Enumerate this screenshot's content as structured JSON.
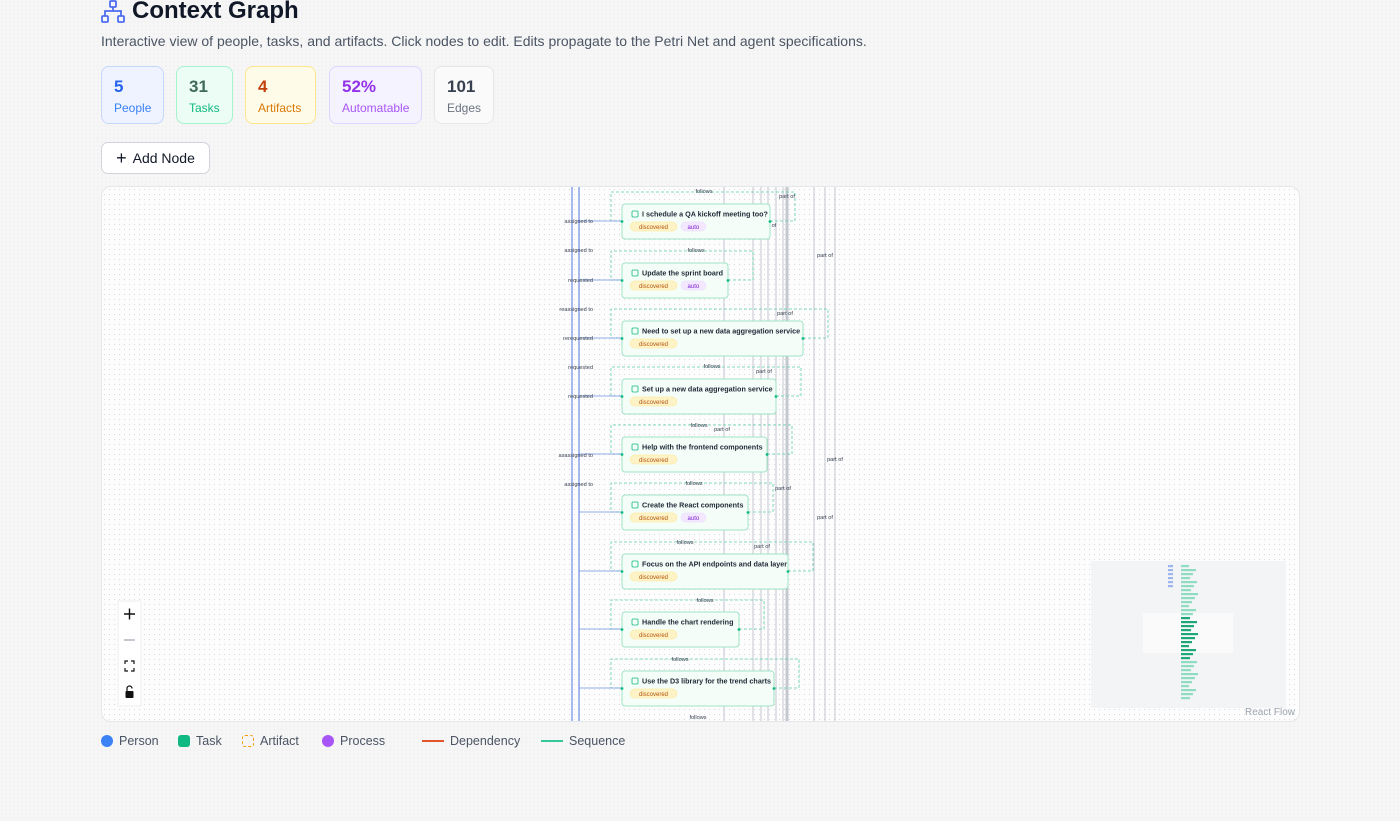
{
  "header": {
    "title": "Context Graph",
    "subtitle": "Interactive view of people, tasks, and artifacts. Click nodes to edit. Edits propagate to the Petri Net and agent specifications."
  },
  "stats": [
    {
      "value": "5",
      "label": "People"
    },
    {
      "value": "31",
      "label": "Tasks"
    },
    {
      "value": "4",
      "label": "Artifacts"
    },
    {
      "value": "52%",
      "label": "Automatable"
    },
    {
      "value": "101",
      "label": "Edges"
    }
  ],
  "add_button": "Add Node",
  "graph": {
    "nodes": [
      {
        "label": "I schedule a QA kickoff meeting too?",
        "badges": [
          "discovered",
          "auto"
        ]
      },
      {
        "label": "Update the sprint board",
        "badges": [
          "discovered",
          "auto"
        ]
      },
      {
        "label": "Need to set up a new data aggregation service",
        "badges": [
          "discovered"
        ]
      },
      {
        "label": "Set up a new data aggregation service",
        "badges": [
          "discovered"
        ]
      },
      {
        "label": "Help with the frontend components",
        "badges": [
          "discovered"
        ]
      },
      {
        "label": "Create the React components",
        "badges": [
          "discovered",
          "auto"
        ]
      },
      {
        "label": "Focus on the API endpoints and data layer",
        "badges": [
          "discovered"
        ]
      },
      {
        "label": "Handle the chart rendering",
        "badges": [
          "discovered"
        ]
      },
      {
        "label": "Use the D3 library for the trend charts",
        "badges": [
          "discovered"
        ]
      }
    ],
    "person_edge_labels": [
      "assigned to",
      "assigned to",
      "requested",
      "reassigned to",
      "rerequested",
      "requested",
      "requested",
      "asassigned to",
      "assigned to"
    ],
    "follows_labels": [
      "follows",
      "follows",
      "follows",
      "follows",
      "follows",
      "follows",
      "follows",
      "follows",
      "follows"
    ],
    "part_of_labels": [
      "part of",
      "part of",
      "part of",
      "part of",
      "part of",
      "part of",
      "part of",
      "part of",
      "part of",
      "of"
    ]
  },
  "attribution": "React Flow",
  "legend": [
    "Person",
    "Task",
    "Artifact",
    "Process",
    "Dependency",
    "Sequence"
  ]
}
